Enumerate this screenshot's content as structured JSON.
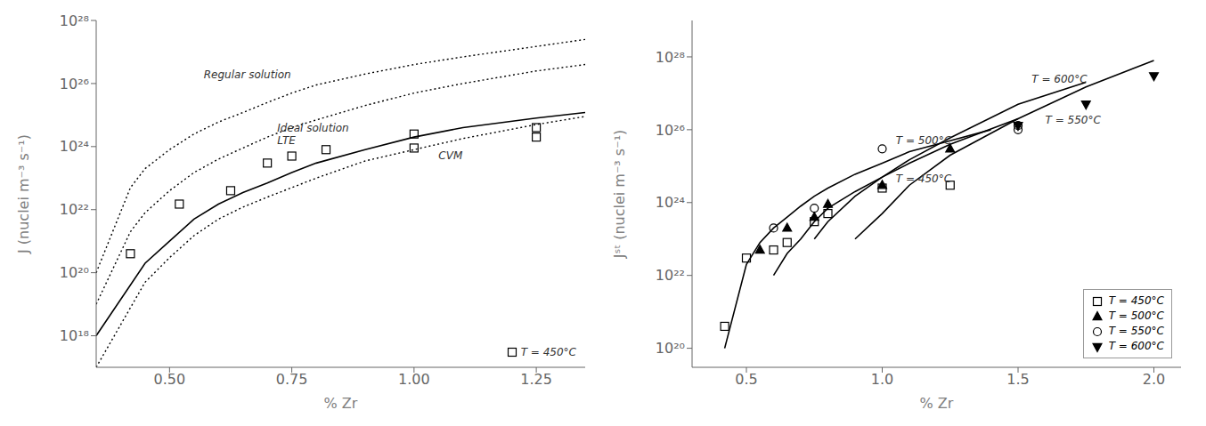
{
  "chart_data": [
    {
      "type": "line",
      "log": "y",
      "grid": false,
      "xlabel": "% Zr",
      "ylabel": "J (nuclei m⁻³ s⁻¹)",
      "xlim": [
        0.35,
        1.35
      ],
      "ylim": [
        1e+17,
        1e+28
      ],
      "xticks": [
        {
          "value": 0.5,
          "label": "0.50"
        },
        0.75,
        {
          "value": 1.0,
          "label": "1.00"
        },
        1.25
      ],
      "yticks": [
        {
          "value": 1e+18,
          "label": "10¹⁸"
        },
        {
          "value": 1e+20,
          "label": "10²⁰"
        },
        {
          "value": 1e+22,
          "label": "10²²"
        },
        {
          "value": 1e+24,
          "label": "10²⁴"
        },
        {
          "value": 1e+26,
          "label": "10²⁶"
        },
        {
          "value": 1e+28,
          "label": "10²⁸"
        }
      ],
      "series": [
        {
          "type": "line",
          "line_style": "solid",
          "color": "black",
          "x": [
            0.35,
            0.45,
            0.5,
            0.55,
            0.6,
            0.65,
            0.7,
            0.75,
            0.8,
            0.9,
            1.0,
            1.1,
            1.25,
            1.35
          ],
          "values": [
            1e+18,
            2e+20,
            1e+21,
            5e+21,
            1.5e+22,
            3.5e+22,
            7e+22,
            1.5e+23,
            3e+23,
            8e+23,
            2e+24,
            4e+24,
            8e+24,
            1.2e+25
          ]
        },
        {
          "type": "line",
          "line_style": "dotted",
          "color": "black",
          "x": [
            0.35,
            0.45,
            0.5,
            0.55,
            0.6,
            0.65,
            0.7,
            0.75,
            0.8,
            0.9,
            1.0,
            1.1,
            1.25,
            1.35
          ],
          "values": [
            1e+17,
            5e+19,
            3e+20,
            1.5e+21,
            5e+21,
            1.2e+22,
            2.5e+22,
            5e+22,
            1e+23,
            3.5e+23,
            8e+23,
            1.8e+24,
            5e+24,
            9e+24
          ]
        },
        {
          "type": "line",
          "line_style": "dotted",
          "color": "black",
          "x": [
            0.35,
            0.42,
            0.45,
            0.5,
            0.55,
            0.6,
            0.65,
            0.7,
            0.75,
            0.8,
            0.9,
            1.0,
            1.1,
            1.25,
            1.35
          ],
          "values": [
            1e+19,
            2e+21,
            8e+21,
            4e+22,
            1.5e+23,
            4e+23,
            9e+23,
            2e+24,
            4e+24,
            7e+24,
            2e+25,
            5e+25,
            1e+26,
            2.5e+26,
            4e+26
          ]
        },
        {
          "type": "line",
          "line_style": "dotted",
          "color": "black",
          "x": [
            0.35,
            0.42,
            0.45,
            0.5,
            0.55,
            0.6,
            0.65,
            0.7,
            0.75,
            0.8,
            0.9,
            1.0,
            1.1,
            1.25,
            1.35
          ],
          "values": [
            1e+20,
            5e+22,
            2e+23,
            8e+23,
            2.5e+24,
            6e+24,
            1.2e+25,
            2.5e+25,
            5e+25,
            9e+25,
            2e+26,
            4e+26,
            7e+26,
            1.5e+27,
            2.5e+27
          ]
        },
        {
          "type": "scatter",
          "marker": "square-open",
          "color": "black",
          "x": [
            0.42,
            0.52,
            0.625,
            0.7,
            0.75,
            0.82,
            1.0,
            1.0,
            1.25,
            1.25
          ],
          "values": [
            4e+20,
            1.5e+22,
            4e+22,
            3e+23,
            5e+23,
            8e+23,
            9e+23,
            2.5e+24,
            2e+24,
            4e+24
          ]
        }
      ],
      "annotations": [
        {
          "text": "Regular solution",
          "x": 0.57,
          "y": 1.5e+26
        },
        {
          "text": "Ideal solution",
          "x": 0.72,
          "y": 3e+24
        },
        {
          "text": "LTE",
          "x": 0.72,
          "y": 1.2e+24
        },
        {
          "text": "CVM",
          "x": 1.05,
          "y": 4e+23
        },
        {
          "text": "T = 450°C",
          "marker": "square-open"
        }
      ]
    },
    {
      "type": "line",
      "log": "y",
      "grid": false,
      "legend": "lower right",
      "xlabel": "% Zr",
      "ylabel": "Jˢᵗ (nuclei m⁻³ s⁻¹)",
      "xlim": [
        0.3,
        2.1
      ],
      "ylim": [
        3e+19,
        1e+29
      ],
      "xticks": [
        0.5,
        {
          "value": 1.0,
          "label": "1.0"
        },
        1.5,
        {
          "value": 2.0,
          "label": "2.0"
        }
      ],
      "yticks": [
        {
          "value": 1e+20,
          "label": "10²⁰"
        },
        {
          "value": 1e+22,
          "label": "10²²"
        },
        {
          "value": 1e+24,
          "label": "10²⁴"
        },
        {
          "value": 1e+26,
          "label": "10²⁶"
        },
        {
          "value": 1e+28,
          "label": "10²⁸"
        }
      ],
      "series": [
        {
          "type": "line",
          "line_style": "solid",
          "color": "black",
          "x": [
            0.42,
            0.5,
            0.55,
            0.6,
            0.65,
            0.7,
            0.75,
            0.8,
            0.9,
            1.0,
            1.1,
            1.25,
            1.4
          ],
          "values": [
            1e+20,
            2e+22,
            8e+22,
            2e+23,
            4e+23,
            8e+23,
            1.5e+24,
            2.5e+24,
            6e+24,
            1.2e+25,
            2.5e+25,
            5e+25,
            1e+26
          ]
        },
        {
          "type": "line",
          "line_style": "solid",
          "color": "black",
          "x": [
            0.6,
            0.65,
            0.7,
            0.75,
            0.8,
            0.9,
            1.0,
            1.1,
            1.25,
            1.5
          ],
          "values": [
            1e+22,
            4e+22,
            1e+23,
            3e+23,
            7e+23,
            2e+24,
            5e+24,
            1.2e+25,
            4e+25,
            2e+26
          ]
        },
        {
          "type": "line",
          "line_style": "solid",
          "color": "black",
          "x": [
            0.75,
            0.8,
            0.9,
            1.0,
            1.1,
            1.25,
            1.5,
            1.75
          ],
          "values": [
            1e+23,
            3e+23,
            1.5e+24,
            5e+24,
            1.5e+25,
            6e+25,
            5e+26,
            2e+27
          ]
        },
        {
          "type": "line",
          "line_style": "solid",
          "color": "black",
          "x": [
            0.9,
            1.0,
            1.1,
            1.25,
            1.5,
            1.75,
            2.0
          ],
          "values": [
            1e+23,
            5e+23,
            3e+24,
            2e+25,
            2e+26,
            1.5e+27,
            8e+27
          ]
        },
        {
          "type": "scatter",
          "name": "T = 450°C",
          "marker": "square-open",
          "color": "black",
          "x": [
            0.42,
            0.5,
            0.6,
            0.65,
            0.75,
            0.8,
            1.0,
            1.25
          ],
          "values": [
            4e+20,
            3e+22,
            5e+22,
            8e+22,
            3e+23,
            5e+23,
            2.5e+24,
            3e+24
          ]
        },
        {
          "type": "scatter",
          "name": "T = 500°C",
          "marker": "triangle-filled",
          "color": "black",
          "x": [
            0.55,
            0.65,
            0.75,
            0.8,
            1.0,
            1.25
          ],
          "values": [
            5e+22,
            2e+23,
            4e+23,
            9e+23,
            3e+24,
            3e+25
          ]
        },
        {
          "type": "scatter",
          "name": "T = 550°C",
          "marker": "circle-open",
          "color": "black",
          "x": [
            0.6,
            0.75,
            1.0,
            1.5,
            1.5
          ],
          "values": [
            2e+23,
            7e+23,
            3e+25,
            1e+26,
            1.3e+26
          ]
        },
        {
          "type": "scatter",
          "name": "T = 600°C",
          "marker": "triangle-down-filled",
          "color": "black",
          "x": [
            1.5,
            1.75,
            2.0
          ],
          "values": [
            1.3e+26,
            5e+26,
            3e+27
          ]
        }
      ],
      "annotations": [
        {
          "text": "T = 600°C",
          "x": 1.55,
          "y": 2e+27
        },
        {
          "text": "T = 550°C",
          "x": 1.6,
          "y": 1.5e+26
        },
        {
          "text": "T = 500°C",
          "x": 1.05,
          "y": 4e+25
        },
        {
          "text": "T = 450°C",
          "x": 1.05,
          "y": 3.5e+24
        }
      ]
    }
  ]
}
